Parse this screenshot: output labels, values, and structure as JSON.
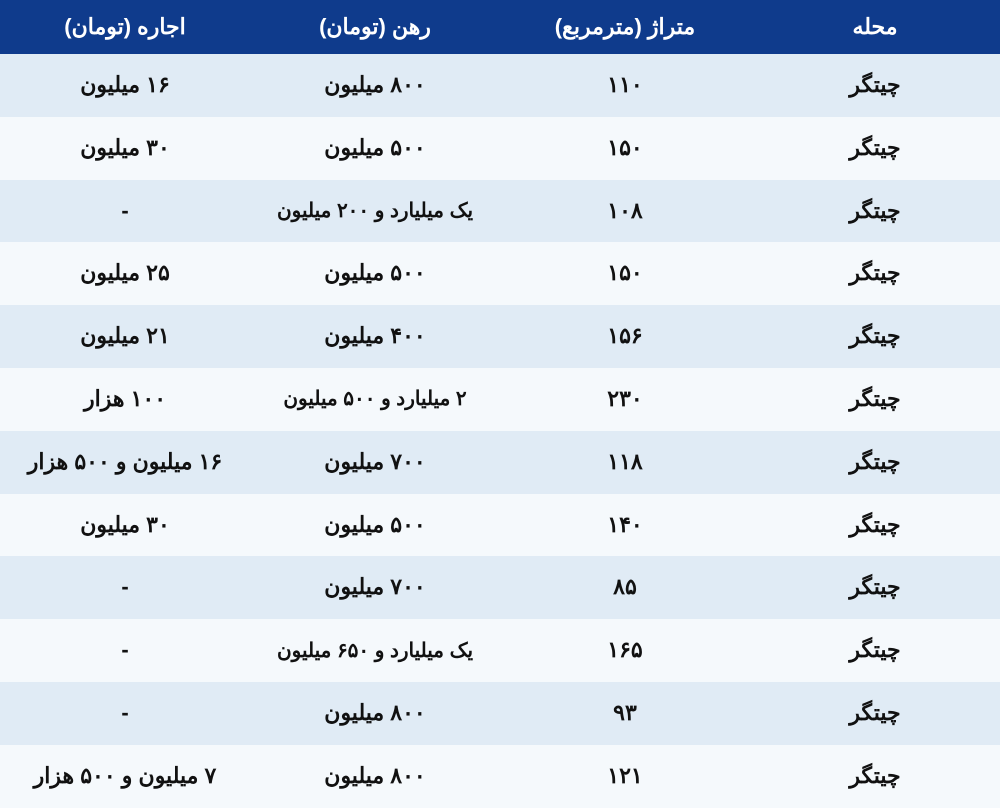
{
  "table": {
    "columns": [
      "محله",
      "متراژ (مترمربع)",
      "رهن (تومان)",
      "اجاره (تومان)"
    ],
    "header_bg": "#0f3b8c",
    "header_color": "#ffffff",
    "header_fontsize": 22,
    "cell_fontsize": 22,
    "row_colors": {
      "even": "#e0ebf5",
      "odd": "#f5f9fc"
    },
    "text_color": "#111111",
    "rows": [
      {
        "neighborhood": "چیتگر",
        "area": "۱۱۰",
        "deposit": "۸۰۰ میلیون",
        "rent": "۱۶ میلیون"
      },
      {
        "neighborhood": "چیتگر",
        "area": "۱۵۰",
        "deposit": "۵۰۰ میلیون",
        "rent": "۳۰ میلیون"
      },
      {
        "neighborhood": "چیتگر",
        "area": "۱۰۸",
        "deposit": "یک میلیارد و ۲۰۰ میلیون",
        "rent": "-",
        "deposit_multiline": true
      },
      {
        "neighborhood": "چیتگر",
        "area": "۱۵۰",
        "deposit": "۵۰۰ میلیون",
        "rent": "۲۵ میلیون"
      },
      {
        "neighborhood": "چیتگر",
        "area": "۱۵۶",
        "deposit": "۴۰۰ میلیون",
        "rent": "۲۱ میلیون"
      },
      {
        "neighborhood": "چیتگر",
        "area": "۲۳۰",
        "deposit": "۲ میلیارد و ۵۰۰ میلیون",
        "rent": "۱۰۰ هزار",
        "deposit_multiline": true
      },
      {
        "neighborhood": "چیتگر",
        "area": "۱۱۸",
        "deposit": "۷۰۰ میلیون",
        "rent": "۱۶ میلیون و ۵۰۰ هزار"
      },
      {
        "neighborhood": "چیتگر",
        "area": "۱۴۰",
        "deposit": "۵۰۰ میلیون",
        "rent": "۳۰ میلیون"
      },
      {
        "neighborhood": "چیتگر",
        "area": "۸۵",
        "deposit": "۷۰۰ میلیون",
        "rent": "-"
      },
      {
        "neighborhood": "چیتگر",
        "area": "۱۶۵",
        "deposit": "یک میلیارد و ۶۵۰ میلیون",
        "rent": "-",
        "deposit_multiline": true
      },
      {
        "neighborhood": "چیتگر",
        "area": "۹۳",
        "deposit": "۸۰۰ میلیون",
        "rent": "-"
      },
      {
        "neighborhood": "چیتگر",
        "area": "۱۲۱",
        "deposit": "۸۰۰ میلیون",
        "rent": "۷ میلیون و ۵۰۰ هزار"
      }
    ]
  }
}
